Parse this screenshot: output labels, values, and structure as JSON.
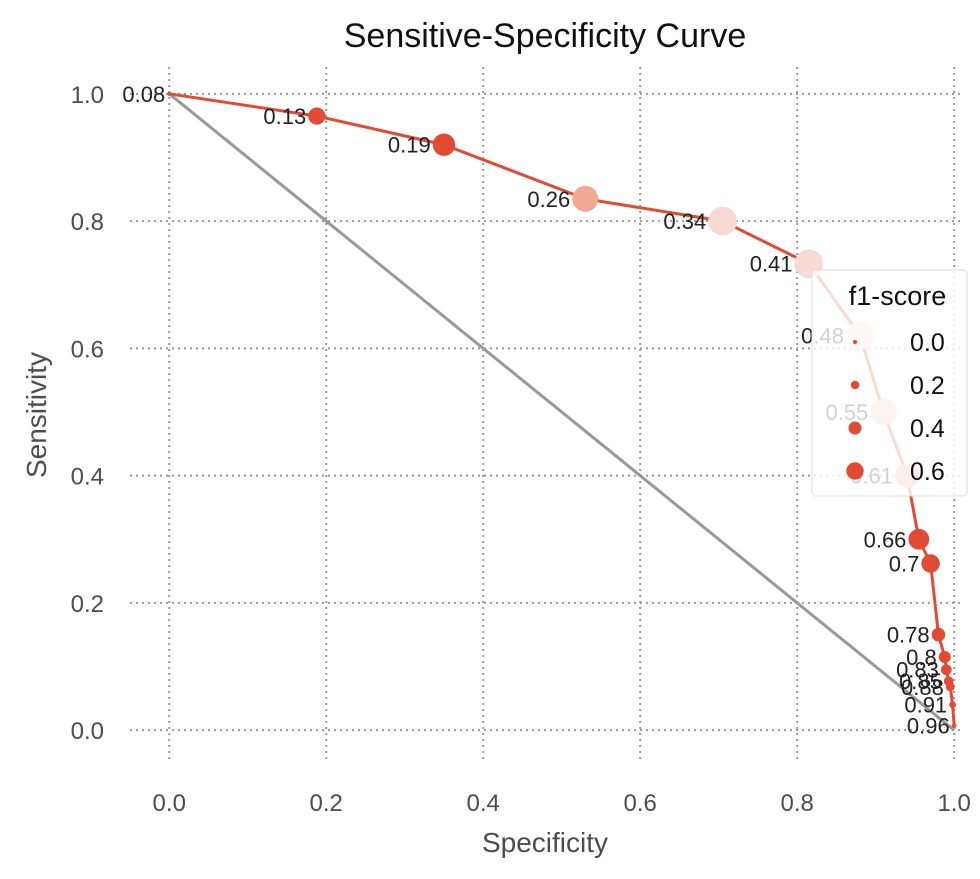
{
  "chart_data": {
    "type": "line",
    "title": "Sensitive-Specificity Curve",
    "xlabel": "Specificity",
    "ylabel": "Sensitivity",
    "xlim": [
      -0.05,
      1.01
    ],
    "ylim": [
      -0.05,
      1.05
    ],
    "xticks": [
      "0.0",
      "0.2",
      "0.4",
      "0.6",
      "0.8",
      "1.0"
    ],
    "yticks": [
      "0.0",
      "0.2",
      "0.4",
      "0.6",
      "0.8",
      "1.0"
    ],
    "grid": true,
    "legend": {
      "title": "f1-score",
      "placement": "right",
      "entries": [
        "0.0",
        "0.2",
        "0.4",
        "0.6"
      ]
    },
    "reference_line": {
      "x": [
        0,
        1
      ],
      "y": [
        1,
        0
      ],
      "color": "#999999"
    },
    "series": [
      {
        "color": "#e24a33",
        "points": [
          {
            "x": 0.0,
            "y": 1.0,
            "label": "0.08",
            "f1": 0.0
          },
          {
            "x": 0.188,
            "y": 0.965,
            "label": "0.13",
            "f1": 0.33
          },
          {
            "x": 0.35,
            "y": 0.92,
            "label": "0.19",
            "f1": 0.46
          },
          {
            "x": 0.53,
            "y": 0.835,
            "label": "0.26",
            "f1": 0.55
          },
          {
            "x": 0.705,
            "y": 0.8,
            "label": "0.34",
            "f1": 0.62
          },
          {
            "x": 0.815,
            "y": 0.733,
            "label": "0.41",
            "f1": 0.62
          },
          {
            "x": 0.88,
            "y": 0.62,
            "label": "0.48",
            "f1": 0.6
          },
          {
            "x": 0.91,
            "y": 0.5,
            "label": "0.55",
            "f1": 0.56
          },
          {
            "x": 0.94,
            "y": 0.4,
            "label": "0.61",
            "f1": 0.5
          },
          {
            "x": 0.955,
            "y": 0.3,
            "label": "0.66",
            "f1": 0.42
          },
          {
            "x": 0.97,
            "y": 0.262,
            "label": "0.7",
            "f1": 0.36
          },
          {
            "x": 0.98,
            "y": 0.15,
            "label": "0.78",
            "f1": 0.24
          },
          {
            "x": 0.988,
            "y": 0.115,
            "label": "0.8",
            "f1": 0.2
          },
          {
            "x": 0.99,
            "y": 0.095,
            "label": "0.83",
            "f1": 0.17
          },
          {
            "x": 0.993,
            "y": 0.077,
            "label": "0.85",
            "f1": 0.14
          },
          {
            "x": 0.995,
            "y": 0.068,
            "label": "0.88",
            "f1": 0.12
          },
          {
            "x": 0.998,
            "y": 0.04,
            "label": "0.91",
            "f1": 0.07
          },
          {
            "x": 1.0,
            "y": 0.007,
            "label": "0.96",
            "f1": 0.02
          }
        ]
      }
    ]
  }
}
